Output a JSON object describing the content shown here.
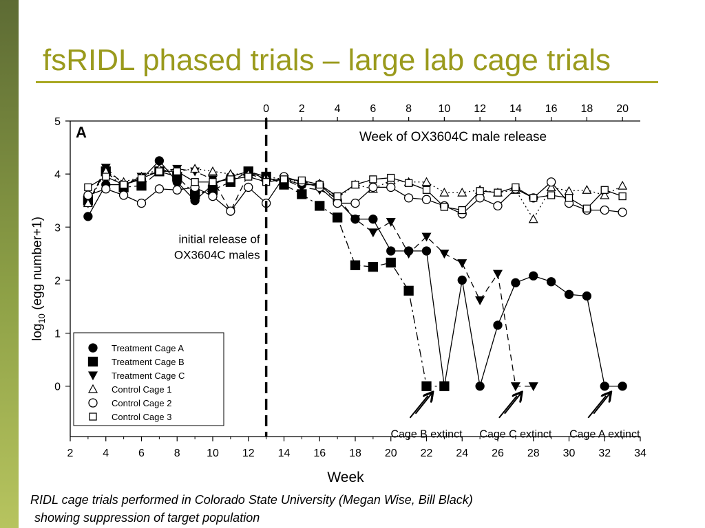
{
  "slide": {
    "title": "fsRIDL phased trials – large lab cage trials",
    "caption_line1": "RIDL cage trials performed in Colorado State University (Megan Wise, Bill Black)",
    "caption_line2": "showing suppression of target population",
    "accent_color": "#9a9a1c"
  },
  "chart_data": {
    "type": "line",
    "panel_label": "A",
    "xlabel": "Week",
    "ylabel_html": "log10 (egg number+1)",
    "xlim": [
      2,
      34
    ],
    "ylim": [
      -0.95,
      5
    ],
    "x_ticks": [
      2,
      4,
      6,
      8,
      10,
      12,
      14,
      16,
      18,
      20,
      22,
      24,
      26,
      28,
      30,
      32,
      34
    ],
    "y_ticks": [
      0,
      1,
      2,
      3,
      4,
      5
    ],
    "top_axis_label": "Week of OX3604C male release",
    "top_ticks": [
      {
        "label": "0",
        "x": 13
      },
      {
        "label": "2",
        "x": 15
      },
      {
        "label": "4",
        "x": 17
      },
      {
        "label": "6",
        "x": 19
      },
      {
        "label": "8",
        "x": 21
      },
      {
        "label": "10",
        "x": 23
      },
      {
        "label": "12",
        "x": 25
      },
      {
        "label": "14",
        "x": 27
      },
      {
        "label": "16",
        "x": 29
      },
      {
        "label": "18",
        "x": 31
      },
      {
        "label": "20",
        "x": 33
      }
    ],
    "release_line_x": 13,
    "release_annotation": [
      "initial release of",
      "OX3604C males"
    ],
    "extinct_labels": [
      {
        "text": "Cage B extinct",
        "x": 22
      },
      {
        "text": "Cage C extinct",
        "x": 27
      },
      {
        "text": "Cage A extinct",
        "x": 32
      }
    ],
    "series": [
      {
        "name": "Treatment Cage A",
        "marker": "circle-filled",
        "dash": "solid",
        "x": [
          3,
          4,
          5,
          6,
          7,
          8,
          9,
          10,
          11,
          12,
          13,
          14,
          15,
          16,
          17,
          18,
          19,
          20,
          21,
          22,
          23,
          24,
          25,
          26,
          27,
          28,
          29,
          30,
          31,
          32,
          33
        ],
        "y": [
          3.2,
          3.8,
          3.8,
          3.9,
          4.25,
          3.85,
          3.5,
          3.8,
          3.95,
          4.05,
          3.9,
          3.9,
          3.8,
          3.8,
          3.5,
          3.15,
          3.15,
          2.55,
          2.55,
          2.55,
          0,
          2.0,
          0,
          1.15,
          1.95,
          2.08,
          1.97,
          1.73,
          1.7,
          0,
          0
        ]
      },
      {
        "name": "Treatment Cage B",
        "marker": "square-filled",
        "dash": "dashdot",
        "x": [
          3,
          4,
          5,
          6,
          7,
          8,
          9,
          10,
          11,
          12,
          13,
          14,
          15,
          16,
          17,
          18,
          19,
          20,
          21,
          22,
          23
        ],
        "y": [
          3.5,
          4.05,
          3.75,
          3.78,
          4.05,
          3.95,
          3.62,
          3.7,
          3.85,
          4.05,
          3.95,
          3.8,
          3.62,
          3.4,
          3.18,
          2.28,
          2.25,
          2.33,
          1.8,
          0,
          0
        ]
      },
      {
        "name": "Treatment Cage C",
        "marker": "triangle-down-filled",
        "dash": "dashed",
        "x": [
          3,
          4,
          5,
          6,
          7,
          8,
          9,
          10,
          11,
          12,
          13,
          14,
          15,
          16,
          17,
          18,
          19,
          20,
          21,
          22,
          23,
          24,
          25,
          26,
          27,
          28
        ],
        "y": [
          3.45,
          4.12,
          3.8,
          3.95,
          4.05,
          4.1,
          4.05,
          3.9,
          3.3,
          4.0,
          3.9,
          3.9,
          3.75,
          3.7,
          3.55,
          3.15,
          2.9,
          3.1,
          2.5,
          2.82,
          2.5,
          2.32,
          1.62,
          2.12,
          0,
          0
        ]
      },
      {
        "name": "Control Cage 1",
        "marker": "triangle-up-open",
        "dash": "dotted",
        "x": [
          3,
          4,
          5,
          6,
          7,
          8,
          9,
          10,
          11,
          12,
          13,
          14,
          15,
          16,
          17,
          18,
          19,
          20,
          21,
          22,
          23,
          24,
          25,
          26,
          27,
          28,
          29,
          30,
          31,
          32,
          33
        ],
        "y": [
          3.45,
          4.05,
          3.85,
          3.95,
          4.1,
          4.05,
          4.1,
          4.05,
          4.0,
          4.0,
          3.95,
          3.9,
          3.85,
          3.82,
          3.55,
          3.8,
          3.72,
          3.88,
          3.85,
          3.85,
          3.65,
          3.65,
          3.7,
          3.65,
          3.7,
          3.15,
          3.75,
          3.68,
          3.7,
          3.6,
          3.78
        ]
      },
      {
        "name": "Control Cage 2",
        "marker": "circle-open",
        "dash": "solid",
        "x": [
          3,
          4,
          5,
          6,
          7,
          8,
          9,
          10,
          11,
          12,
          13,
          14,
          15,
          16,
          17,
          18,
          19,
          20,
          21,
          22,
          23,
          24,
          25,
          26,
          27,
          28,
          29,
          30,
          31,
          32,
          33
        ],
        "y": [
          3.6,
          3.72,
          3.6,
          3.45,
          3.72,
          3.7,
          3.75,
          3.58,
          3.3,
          3.75,
          3.45,
          3.95,
          3.85,
          3.75,
          3.45,
          3.45,
          3.75,
          3.75,
          3.55,
          3.52,
          3.4,
          3.25,
          3.55,
          3.4,
          3.72,
          3.55,
          3.85,
          3.45,
          3.32,
          3.32,
          3.28
        ]
      },
      {
        "name": "Control Cage 3",
        "marker": "square-open",
        "dash": "solid",
        "x": [
          3,
          4,
          5,
          6,
          7,
          8,
          9,
          10,
          11,
          12,
          13,
          14,
          15,
          16,
          17,
          18,
          19,
          20,
          21,
          22,
          23,
          24,
          25,
          26,
          27,
          28,
          29,
          30,
          31,
          32,
          33
        ],
        "y": [
          3.75,
          3.95,
          3.8,
          3.92,
          4.05,
          4.05,
          3.85,
          3.85,
          3.9,
          3.95,
          3.85,
          3.9,
          3.88,
          3.8,
          3.58,
          3.8,
          3.9,
          3.93,
          3.83,
          3.7,
          3.38,
          3.32,
          3.68,
          3.65,
          3.75,
          3.55,
          3.6,
          3.55,
          3.35,
          3.7,
          3.58
        ]
      }
    ],
    "legend_placement": "bottom-left",
    "grid": false
  }
}
